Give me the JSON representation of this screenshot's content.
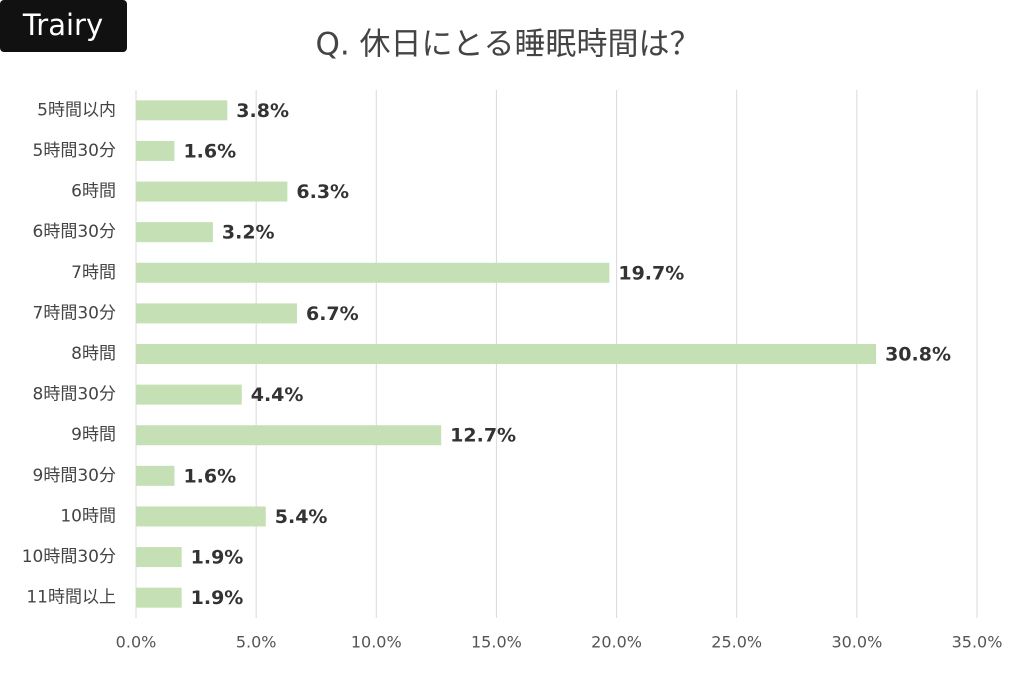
{
  "brand": "Trairy",
  "chart_data": {
    "type": "bar",
    "orientation": "horizontal",
    "title": "Q. 休日にとる睡眠時間は？",
    "categories": [
      "5時間以内",
      "5時間30分",
      "6時間",
      "6時間30分",
      "7時間",
      "7時間30分",
      "8時間",
      "8時間30分",
      "9時間",
      "9時間30分",
      "10時間",
      "10時間30分",
      "11時間以上"
    ],
    "values": [
      3.8,
      1.6,
      6.3,
      3.2,
      19.7,
      6.7,
      30.8,
      4.4,
      12.7,
      1.6,
      5.4,
      1.9,
      1.9
    ],
    "value_labels": [
      "3.8%",
      "1.6%",
      "6.3%",
      "3.2%",
      "19.7%",
      "6.7%",
      "30.8%",
      "4.4%",
      "12.7%",
      "1.6%",
      "5.4%",
      "1.9%",
      "1.9%"
    ],
    "color": "#c5e0b4",
    "xlim": [
      0,
      35
    ],
    "xticks": [
      {
        "value": 0,
        "label": "0.0%"
      },
      {
        "value": 5,
        "label": "5.0%"
      },
      {
        "value": 10,
        "label": "10.0%"
      },
      {
        "value": 15,
        "label": "15.0%"
      },
      {
        "value": 20,
        "label": "20.0%"
      },
      {
        "value": 25,
        "label": "25.0%"
      },
      {
        "value": 30,
        "label": "30.0%"
      },
      {
        "value": 35,
        "label": "35.0%"
      }
    ],
    "grid": true
  }
}
